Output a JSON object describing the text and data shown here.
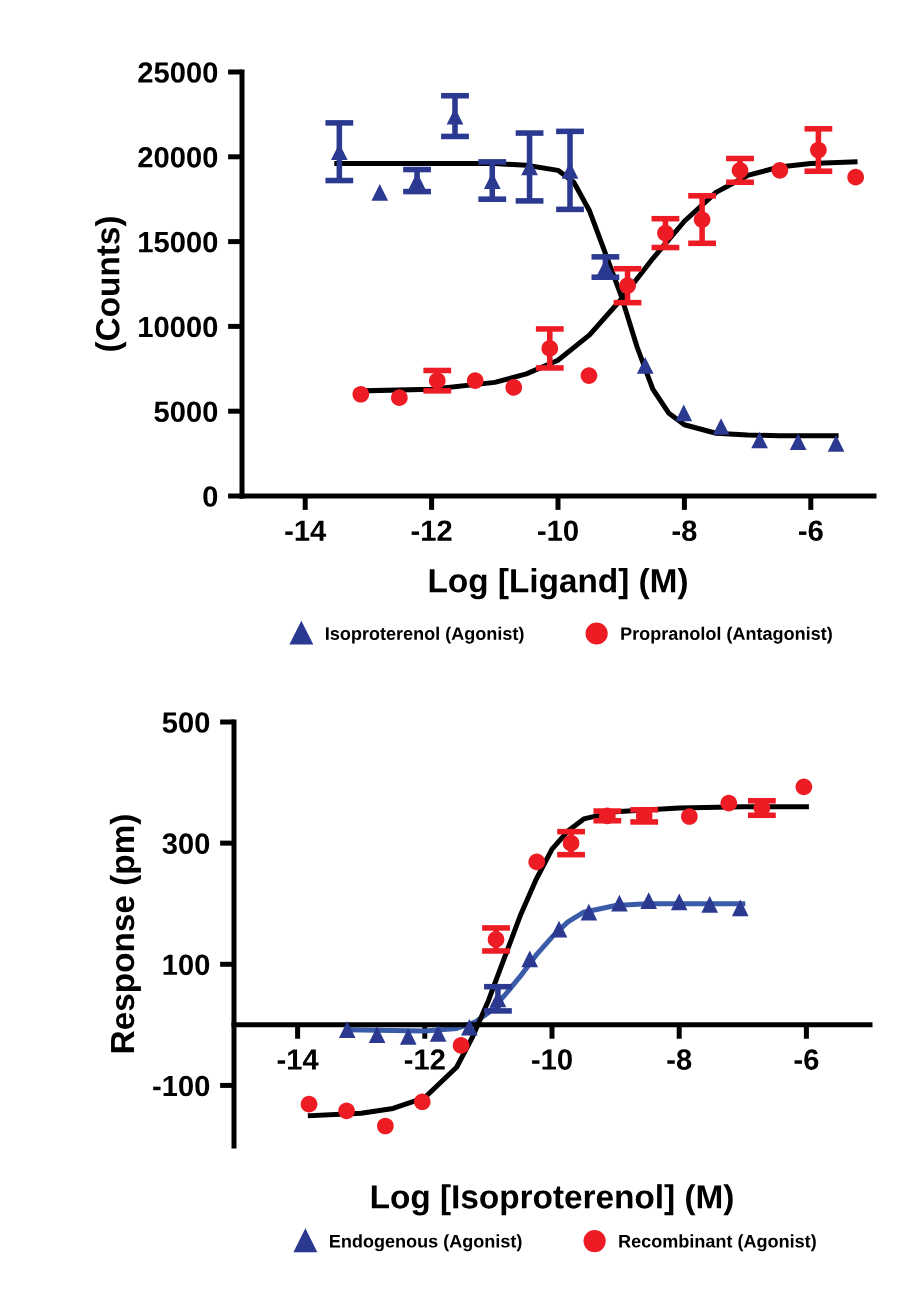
{
  "chart_data": [
    {
      "type": "scatter",
      "xlabel": "Log [Ligand] (M)",
      "ylabel": "(Counts)",
      "xlim": [
        -15,
        -5
      ],
      "xticks": [
        -14,
        -12,
        -10,
        -8,
        -6
      ],
      "ylim": [
        0,
        25000
      ],
      "yticks": [
        0,
        5000,
        10000,
        15000,
        20000,
        25000
      ],
      "legend": "bottom",
      "grid": false,
      "series": [
        {
          "name": "Isoproterenol (Agonist)",
          "color": "#2b3990",
          "marker": "triangle",
          "x": [
            -13.46,
            -12.82,
            -12.23,
            -11.63,
            -11.04,
            -10.45,
            -9.81,
            -9.25,
            -8.62,
            -8.01,
            -7.42,
            -6.81,
            -6.2,
            -5.6
          ],
          "values": [
            20300,
            17900,
            18600,
            22400,
            18600,
            19400,
            19200,
            13500,
            7700,
            4900,
            4100,
            3300,
            3200,
            3100
          ],
          "errors": [
            1700,
            null,
            650,
            1200,
            1100,
            2000,
            2300,
            600,
            null,
            null,
            null,
            null,
            null,
            null
          ]
        },
        {
          "name": "Propranolol (Antagonist)",
          "color": "#ed1c24",
          "marker": "circle",
          "x": [
            -13.12,
            -12.51,
            -11.91,
            -11.31,
            -10.7,
            -10.13,
            -9.51,
            -8.9,
            -8.3,
            -7.72,
            -7.12,
            -6.49,
            -5.88,
            -5.29
          ],
          "values": [
            6000,
            5800,
            6800,
            6800,
            6400,
            8700,
            7100,
            12400,
            15500,
            16300,
            19200,
            19200,
            20400,
            18800
          ],
          "errors": [
            null,
            null,
            600,
            null,
            null,
            1150,
            null,
            1000,
            850,
            1400,
            700,
            null,
            1250,
            null
          ]
        },
        {
          "type": "line",
          "color": "#000000",
          "marker": "none",
          "x": [
            -13.5,
            -11,
            -10.5,
            -10,
            -9.75,
            -9.5,
            -9.25,
            -9,
            -8.75,
            -8.5,
            -8.25,
            -8,
            -7.5,
            -7,
            -6.5,
            -5.6
          ],
          "values": [
            19600,
            19600,
            19500,
            19200,
            18500,
            16800,
            14300,
            11800,
            8800,
            6300,
            4900,
            4200,
            3700,
            3600,
            3550,
            3550
          ]
        },
        {
          "type": "line",
          "color": "#000000",
          "marker": "none",
          "x": [
            -13.1,
            -12,
            -11,
            -10.5,
            -10,
            -9.5,
            -9,
            -8.5,
            -8,
            -7.5,
            -7,
            -6.5,
            -6,
            -5.3
          ],
          "values": [
            6200,
            6300,
            6700,
            7200,
            8000,
            9500,
            11600,
            14000,
            16200,
            17900,
            18900,
            19400,
            19600,
            19700
          ]
        }
      ]
    },
    {
      "type": "scatter",
      "xlabel": "Log [Isoproterenol] (M)",
      "ylabel": "Response (pm)",
      "xlim": [
        -15,
        -5
      ],
      "xticks": [
        -14,
        -12,
        -10,
        -8,
        -6
      ],
      "ylim": [
        -200,
        500
      ],
      "yticks": [
        -100,
        100,
        300,
        500
      ],
      "legend": "bottom",
      "grid": false,
      "series": [
        {
          "name": "Endogenous (Agonist)",
          "color": "#2b3990",
          "marker": "triangle",
          "x": [
            -13.22,
            -12.75,
            -12.26,
            -11.79,
            -11.3,
            -10.85,
            -10.35,
            -9.89,
            -9.42,
            -8.94,
            -8.48,
            -8.0,
            -7.52,
            -7.04
          ],
          "values": [
            -8,
            -16,
            -19,
            -14,
            -4,
            43,
            109,
            158,
            186,
            201,
            205,
            203,
            199,
            193
          ],
          "errors": [
            null,
            null,
            null,
            null,
            null,
            20,
            null,
            null,
            null,
            null,
            null,
            null,
            null,
            null
          ]
        },
        {
          "name": "Recombinant (Agonist)",
          "color": "#ed1c24",
          "marker": "circle",
          "x": [
            -13.82,
            -13.23,
            -12.62,
            -12.04,
            -11.43,
            -10.88,
            -10.24,
            -9.7,
            -9.13,
            -8.55,
            -7.84,
            -7.22,
            -6.7,
            -6.04
          ],
          "values": [
            -131,
            -142,
            -167,
            -127,
            -34,
            141,
            269,
            300,
            345,
            345,
            344,
            366,
            358,
            393
          ],
          "errors": [
            null,
            null,
            null,
            null,
            null,
            19,
            null,
            19,
            8,
            10,
            null,
            null,
            12,
            null
          ]
        },
        {
          "type": "line",
          "color": "#3a5ba8",
          "marker": "none",
          "x": [
            -13.2,
            -12,
            -11.5,
            -11.2,
            -11,
            -10.75,
            -10.5,
            -10.25,
            -10,
            -9.75,
            -9.5,
            -9,
            -8.5,
            -7
          ],
          "values": [
            -8,
            -10,
            -6,
            5,
            20,
            48,
            80,
            115,
            145,
            170,
            186,
            197,
            200,
            200
          ]
        },
        {
          "type": "line",
          "color": "#000000",
          "marker": "none",
          "x": [
            -13.8,
            -13,
            -12.5,
            -12,
            -11.5,
            -11.25,
            -11,
            -10.75,
            -10.5,
            -10.25,
            -10,
            -9.75,
            -9.5,
            -9,
            -8,
            -7,
            -6
          ],
          "values": [
            -150,
            -146,
            -138,
            -120,
            -70,
            -20,
            40,
            110,
            180,
            240,
            290,
            320,
            340,
            352,
            358,
            360,
            360
          ]
        }
      ]
    }
  ]
}
